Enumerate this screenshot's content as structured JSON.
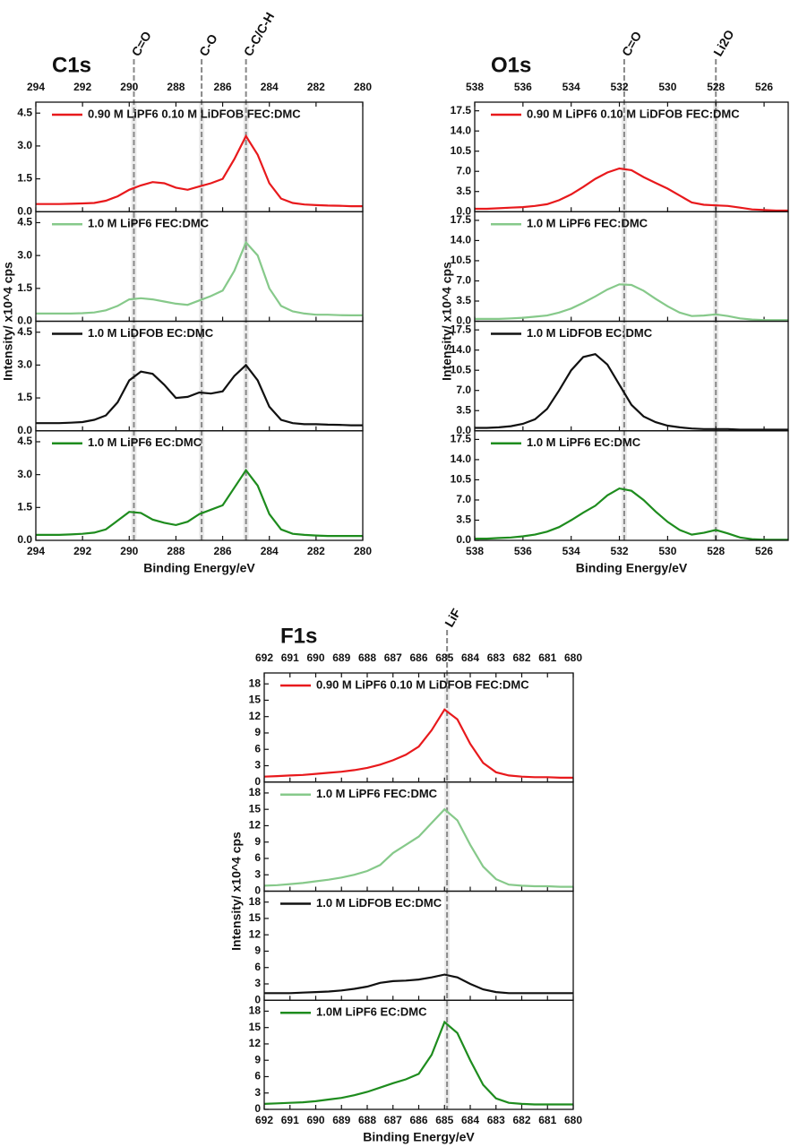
{
  "chart_data": [
    {
      "type": "line",
      "title": "C1s",
      "xlabel": "Binding Energy/eV",
      "ylabel": "Intensity/ x10^4 cps",
      "xlim": [
        294,
        280
      ],
      "xticks": [
        294,
        292,
        290,
        288,
        286,
        284,
        282,
        280
      ],
      "ylim": [
        0,
        5
      ],
      "yticks": [
        {
          "value": 0,
          "label": "0.0"
        },
        1.5,
        {
          "value": 3,
          "label": "3.0"
        },
        4.5
      ],
      "annotations": [
        {
          "text": "C=O",
          "x": 289.8
        },
        {
          "text": "C-O",
          "x": 286.9
        },
        {
          "text": "C-C/C-H",
          "x": 285.0
        }
      ],
      "x": [
        294,
        293.5,
        293,
        292.5,
        292,
        291.5,
        291,
        290.5,
        290,
        289.5,
        289,
        288.5,
        288,
        287.5,
        287,
        286.5,
        286,
        285.5,
        285,
        284.5,
        284,
        283.5,
        283,
        282.5,
        282,
        281.5,
        281,
        280.5,
        280
      ],
      "series": [
        {
          "name": "0.90 M LiPF6 0.10 M LiDFOB FEC:DMC",
          "color": "#e8191c",
          "values": [
            0.35,
            0.35,
            0.35,
            0.36,
            0.38,
            0.4,
            0.5,
            0.7,
            1.0,
            1.2,
            1.35,
            1.3,
            1.1,
            1.0,
            1.15,
            1.3,
            1.5,
            2.4,
            3.45,
            2.6,
            1.3,
            0.6,
            0.4,
            0.33,
            0.3,
            0.28,
            0.27,
            0.25,
            0.25
          ]
        },
        {
          "name": "1.0 M LiPF6 FEC:DMC",
          "color": "#86c98a",
          "values": [
            0.35,
            0.35,
            0.35,
            0.35,
            0.37,
            0.4,
            0.5,
            0.7,
            1.0,
            1.05,
            1.0,
            0.9,
            0.8,
            0.75,
            0.95,
            1.15,
            1.4,
            2.3,
            3.6,
            3.0,
            1.5,
            0.7,
            0.45,
            0.35,
            0.3,
            0.3,
            0.28,
            0.27,
            0.27
          ]
        },
        {
          "name": "1.0 M LiDFOB EC:DMC",
          "color": "#111111",
          "values": [
            0.35,
            0.35,
            0.35,
            0.37,
            0.4,
            0.5,
            0.7,
            1.3,
            2.3,
            2.7,
            2.6,
            2.1,
            1.5,
            1.55,
            1.75,
            1.7,
            1.8,
            2.5,
            3.0,
            2.3,
            1.1,
            0.5,
            0.35,
            0.3,
            0.3,
            0.28,
            0.27,
            0.25,
            0.25
          ]
        },
        {
          "name": "1.0 M LiPF6 EC:DMC",
          "color": "#1e8c1e",
          "values": [
            0.25,
            0.25,
            0.25,
            0.27,
            0.3,
            0.35,
            0.5,
            0.9,
            1.3,
            1.25,
            0.95,
            0.8,
            0.7,
            0.85,
            1.2,
            1.4,
            1.6,
            2.4,
            3.2,
            2.5,
            1.2,
            0.5,
            0.3,
            0.25,
            0.22,
            0.2,
            0.2,
            0.2,
            0.2
          ]
        }
      ]
    },
    {
      "type": "line",
      "title": "O1s",
      "xlabel": "Binding Energy/eV",
      "ylabel": "Intensity/ x10^4 cps",
      "xlim": [
        538,
        525
      ],
      "xticks": [
        538,
        536,
        534,
        532,
        530,
        528,
        526
      ],
      "ylim": [
        0,
        19
      ],
      "yticks": [
        {
          "value": 0,
          "label": "0.0"
        },
        3.5,
        {
          "value": 7,
          "label": "7.0"
        },
        10.5,
        {
          "value": 14,
          "label": "14.0"
        },
        17.5
      ],
      "annotations": [
        {
          "text": "C=O",
          "x": 531.8
        },
        {
          "text": "Li2O",
          "x": 528.0
        }
      ],
      "x": [
        538,
        537.5,
        537,
        536.5,
        536,
        535.5,
        535,
        534.5,
        534,
        533.5,
        533,
        532.5,
        532,
        531.5,
        531,
        530.5,
        530,
        529.5,
        529,
        528.5,
        528,
        527.5,
        527,
        526.5,
        526,
        525.5,
        525
      ],
      "series": [
        {
          "name": "0.90 M LiPF6 0.10 M LiDFOB FEC:DMC",
          "color": "#e8191c",
          "values": [
            0.5,
            0.5,
            0.6,
            0.7,
            0.8,
            1.0,
            1.3,
            2.0,
            3.0,
            4.3,
            5.7,
            6.8,
            7.5,
            7.2,
            6.0,
            5.0,
            4.0,
            2.8,
            1.6,
            1.2,
            1.1,
            1.0,
            0.7,
            0.4,
            0.3,
            0.2,
            0.2
          ]
        },
        {
          "name": "1.0 M LiPF6 FEC:DMC",
          "color": "#86c98a",
          "values": [
            0.4,
            0.4,
            0.4,
            0.5,
            0.6,
            0.8,
            1.0,
            1.5,
            2.2,
            3.2,
            4.3,
            5.5,
            6.4,
            6.3,
            5.3,
            3.9,
            2.6,
            1.5,
            0.9,
            1.0,
            1.2,
            0.9,
            0.5,
            0.3,
            0.2,
            0.2,
            0.2
          ]
        },
        {
          "name": "1.0 M LiDFOB EC:DMC",
          "color": "#111111",
          "values": [
            0.5,
            0.5,
            0.6,
            0.8,
            1.2,
            2.0,
            3.8,
            7.0,
            10.5,
            12.8,
            13.3,
            11.5,
            8.0,
            4.5,
            2.5,
            1.5,
            0.9,
            0.6,
            0.4,
            0.3,
            0.3,
            0.3,
            0.2,
            0.2,
            0.2,
            0.2,
            0.2
          ]
        },
        {
          "name": "1.0 M LiPF6 EC:DMC",
          "color": "#1e8c1e",
          "values": [
            0.3,
            0.3,
            0.4,
            0.5,
            0.7,
            1.0,
            1.5,
            2.3,
            3.5,
            4.8,
            6.0,
            7.8,
            9.0,
            8.6,
            7.0,
            5.0,
            3.2,
            1.8,
            1.0,
            1.3,
            1.8,
            1.2,
            0.5,
            0.2,
            0.1,
            0.1,
            0.1
          ]
        }
      ]
    },
    {
      "type": "line",
      "title": "F1s",
      "xlabel": "Binding Energy/eV",
      "ylabel": "Intensity/ x10^4 cps",
      "xlim": [
        692,
        680
      ],
      "xticks": [
        692,
        691,
        690,
        689,
        688,
        687,
        686,
        685,
        684,
        683,
        682,
        681,
        680
      ],
      "ylim": [
        0,
        20
      ],
      "yticks": [
        0,
        3,
        6,
        9,
        12,
        15,
        18
      ],
      "annotations": [
        {
          "text": "LiF",
          "x": 684.9
        }
      ],
      "x": [
        692,
        691.5,
        691,
        690.5,
        690,
        689.5,
        689,
        688.5,
        688,
        687.5,
        687,
        686.5,
        686,
        685.5,
        685,
        684.5,
        684,
        683.5,
        683,
        682.5,
        682,
        681.5,
        681,
        680.5,
        680
      ],
      "series": [
        {
          "name": "0.90 M LiPF6 0.10 M LiDFOB FEC:DMC",
          "color": "#e8191c",
          "values": [
            1.0,
            1.1,
            1.2,
            1.3,
            1.5,
            1.7,
            1.9,
            2.2,
            2.6,
            3.2,
            4.0,
            5.0,
            6.5,
            9.5,
            13.3,
            11.5,
            7.0,
            3.5,
            1.8,
            1.2,
            1.0,
            0.9,
            0.9,
            0.8,
            0.8
          ]
        },
        {
          "name": "1.0 M LiPF6 FEC:DMC",
          "color": "#86c98a",
          "values": [
            1.0,
            1.1,
            1.3,
            1.5,
            1.8,
            2.1,
            2.5,
            3.0,
            3.7,
            4.8,
            7.0,
            8.5,
            10.0,
            12.5,
            15.0,
            13.0,
            8.5,
            4.5,
            2.2,
            1.2,
            1.0,
            0.9,
            0.9,
            0.8,
            0.8
          ]
        },
        {
          "name": "1.0 M LiDFOB EC:DMC",
          "color": "#111111",
          "values": [
            1.3,
            1.3,
            1.3,
            1.4,
            1.5,
            1.6,
            1.8,
            2.1,
            2.5,
            3.2,
            3.5,
            3.6,
            3.8,
            4.2,
            4.7,
            4.2,
            3.0,
            2.0,
            1.5,
            1.3,
            1.3,
            1.3,
            1.3,
            1.3,
            1.3
          ]
        },
        {
          "name": "1.0M LiPF6 EC:DMC",
          "color": "#1e8c1e",
          "values": [
            1.0,
            1.1,
            1.2,
            1.3,
            1.5,
            1.8,
            2.1,
            2.6,
            3.2,
            4.0,
            4.8,
            5.5,
            6.5,
            10.0,
            16.0,
            14.0,
            9.0,
            4.5,
            2.0,
            1.2,
            1.0,
            0.9,
            0.9,
            0.9,
            0.9
          ]
        }
      ]
    }
  ]
}
